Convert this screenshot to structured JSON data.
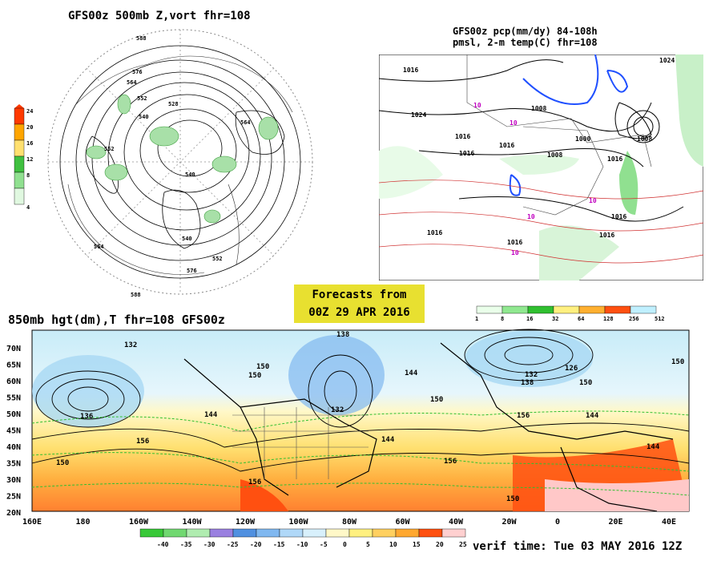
{
  "titles": {
    "z500": "GFS00z  500mb Z,vort   fhr=108",
    "pcp_line1": "GFS00z pcp(mm/dy) 84-108h",
    "pcp_line2": "pmsl, 2-m temp(C)  fhr=108",
    "hgt850": "850mb hgt(dm),T  fhr=108 GFS00z"
  },
  "forecast_box": {
    "line1": "Forecasts from",
    "line2": "00Z 29 APR 2016"
  },
  "verif_time": "verif time: Tue 03 MAY 2016 12Z",
  "vort_scale": {
    "labels": [
      "24",
      "20",
      "16",
      "12",
      "8",
      "4"
    ],
    "colors": [
      "#ff3a00",
      "#ffa500",
      "#ffe070",
      "#40c040",
      "#90e090",
      "#e0f8e0"
    ]
  },
  "pcp_scale": {
    "labels": [
      "1",
      "8",
      "16",
      "32",
      "64",
      "128",
      "256",
      "512"
    ],
    "colors": [
      "#eaffea",
      "#90e890",
      "#30c030",
      "#fff080",
      "#ffb030",
      "#ff5010",
      "#c0f0ff"
    ]
  },
  "temp_scale": {
    "labels": [
      "-40",
      "-35",
      "-30",
      "-25",
      "-20",
      "-15",
      "-10",
      "-5",
      "0",
      "5",
      "10",
      "15",
      "20",
      "25"
    ],
    "colors": [
      "#38c838",
      "#70d870",
      "#b0ecb0",
      "#9a80e0",
      "#5090e0",
      "#80b8f0",
      "#b0d8f8",
      "#d8f0fc",
      "#fff8c8",
      "#fff080",
      "#ffd060",
      "#ffa830",
      "#ff5010",
      "#ffd0d0"
    ]
  },
  "map850": {
    "lat_labels": [
      "70N",
      "65N",
      "60N",
      "55N",
      "50N",
      "45N",
      "40N",
      "35N",
      "30N",
      "25N",
      "20N"
    ],
    "lon_labels": [
      "160E",
      "180",
      "160W",
      "140W",
      "120W",
      "100W",
      "80W",
      "60W",
      "40W",
      "20W",
      "0",
      "20E",
      "40E"
    ],
    "contour_labels": [
      "132",
      "136",
      "156",
      "150",
      "144",
      "150",
      "138",
      "132",
      "144",
      "150",
      "156",
      "144",
      "132",
      "126",
      "138",
      "150",
      "156",
      "144",
      "144",
      "150",
      "156",
      "150",
      "150"
    ]
  },
  "map500": {
    "contour_labels": [
      "588",
      "576",
      "564",
      "552",
      "540",
      "528",
      "540",
      "552",
      "564",
      "576",
      "588",
      "552",
      "540",
      "564"
    ]
  },
  "mapPcp": {
    "contour_labels": [
      "1016",
      "1024",
      "1016",
      "1008",
      "1016",
      "1000",
      "1008",
      "1016",
      "1016",
      "1024",
      "1008",
      "1016",
      "1016",
      "1016",
      "1016",
      "10",
      "10",
      "10",
      "10",
      "10"
    ]
  }
}
